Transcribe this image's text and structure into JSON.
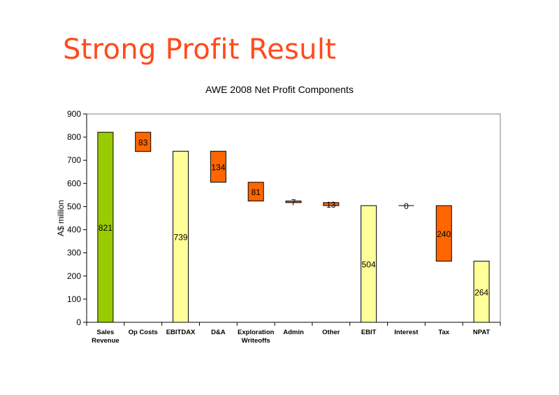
{
  "slide": {
    "title": "Strong Profit Result"
  },
  "chart_data": {
    "type": "bar",
    "subtype": "waterfall",
    "title": "AWE 2008 Net Profit Components",
    "xlabel": "",
    "ylabel": "A$ million",
    "ylim": [
      0,
      900
    ],
    "yticks": [
      0,
      100,
      200,
      300,
      400,
      500,
      600,
      700,
      800,
      900
    ],
    "grid": false,
    "categories": [
      {
        "label": [
          "Sales",
          "Revenue"
        ],
        "base": 0,
        "top": 821,
        "value": "821",
        "kind": "revenue"
      },
      {
        "label": [
          "Op Costs"
        ],
        "base": 738,
        "top": 821,
        "value": "83",
        "kind": "deduction"
      },
      {
        "label": [
          "EBITDAX"
        ],
        "base": 0,
        "top": 739,
        "value": "739",
        "kind": "subtotal"
      },
      {
        "label": [
          "D&A"
        ],
        "base": 605,
        "top": 739,
        "value": "134",
        "kind": "deduction"
      },
      {
        "label": [
          "Exploration",
          "Writeoffs"
        ],
        "base": 524,
        "top": 605,
        "value": "81",
        "kind": "deduction"
      },
      {
        "label": [
          "Admin"
        ],
        "base": 517,
        "top": 524,
        "value": "7",
        "kind": "deduction"
      },
      {
        "label": [
          "Other"
        ],
        "base": 504,
        "top": 517,
        "value": "13",
        "kind": "deduction"
      },
      {
        "label": [
          "EBIT"
        ],
        "base": 0,
        "top": 504,
        "value": "504",
        "kind": "subtotal"
      },
      {
        "label": [
          "Interest"
        ],
        "base": 504,
        "top": 504,
        "value": "0",
        "kind": "deduction"
      },
      {
        "label": [
          "Tax"
        ],
        "base": 264,
        "top": 504,
        "value": "240",
        "kind": "deduction"
      },
      {
        "label": [
          "NPAT"
        ],
        "base": 0,
        "top": 264,
        "value": "264",
        "kind": "subtotal"
      }
    ],
    "colors": {
      "revenue": "#99cc00",
      "subtotal": "#ffff99",
      "deduction": "#ff6600",
      "outline": "#000000"
    }
  }
}
